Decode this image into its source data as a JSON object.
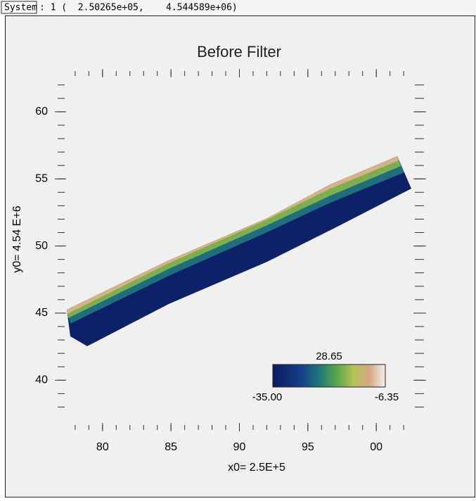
{
  "status_bar": {
    "label": "System",
    "text": ": 1 (  2.50265e+05,    4.544589e+06)"
  },
  "plot": {
    "title": "Before Filter",
    "x_label": "x0= 2.5E+5",
    "y_label": "y0= 4.54 E+6",
    "xlim": [
      77.8,
      102.2
    ],
    "ylim": [
      37.5,
      62.3
    ],
    "xticks": [
      80,
      85,
      90,
      95,
      {
        "value": 100,
        "label": "00"
      }
    ],
    "yticks": [
      40,
      45,
      50,
      55,
      60
    ],
    "colorbar": {
      "title": "28.65",
      "min_label": "-35.00",
      "max_label": "-6.35"
    }
  }
}
